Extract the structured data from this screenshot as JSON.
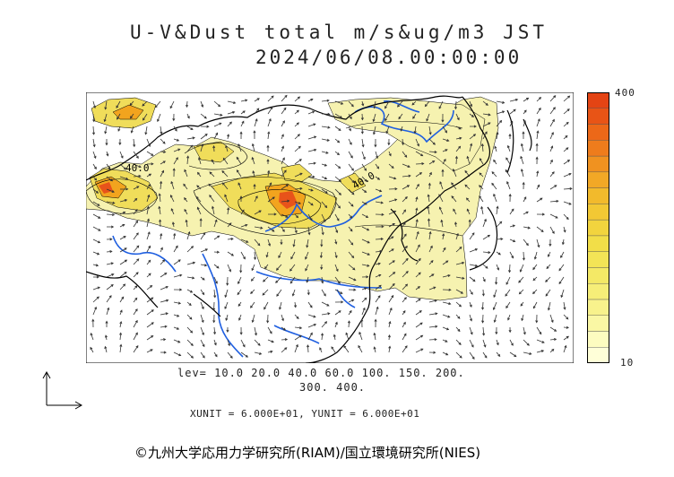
{
  "title": {
    "line1": "U-V&Dust total m/s&ug/m3 JST",
    "line2": "2024/06/08.00:00:00"
  },
  "map": {
    "contour_labels": [
      "40.0",
      "40.0"
    ],
    "colors": {
      "land_border": "#000000",
      "rivers": "#1f5fe0",
      "dust_light": "#f6f2b0",
      "dust_medium": "#f0dd5a",
      "dust_high": "#f2a41e",
      "dust_peak": "#e8531a"
    }
  },
  "colorbar": {
    "max_label": "400",
    "min_label": "10",
    "colors": [
      "#ffffd8",
      "#fdfcc0",
      "#faf7a4",
      "#f8f28c",
      "#f6ee78",
      "#f4e966",
      "#f3e456",
      "#f2de48",
      "#f2d43e",
      "#f2c834",
      "#f2ba2c",
      "#f2a826",
      "#f09220",
      "#ee7c1c",
      "#ec6818",
      "#e85416",
      "#e44414"
    ]
  },
  "levels": {
    "line1": "lev= 10.0 20.0 40.0 60.0 100. 150. 200.",
    "line2": "300. 400."
  },
  "units_text": "XUNIT = 6.000E+01, YUNIT = 6.000E+01",
  "copyright": "©九州大学応用力学研究所(RIAM)/国立環境研究所(NIES)"
}
